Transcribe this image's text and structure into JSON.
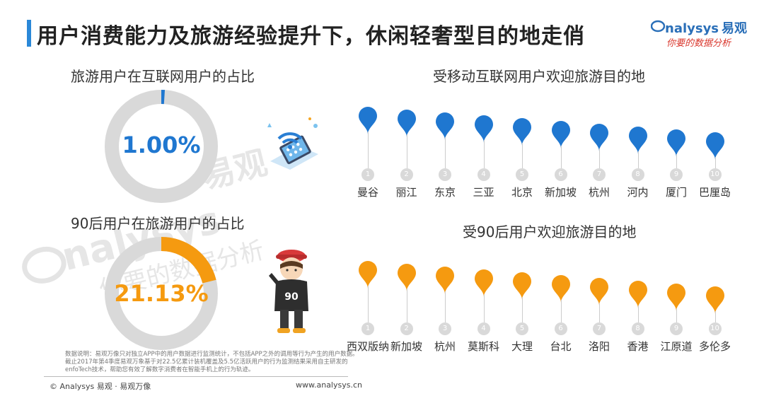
{
  "header": {
    "title": "用户消费能力及旅游经验提升下，休闲轻奢型目的地走俏",
    "logo_main": "nalysys",
    "logo_cn": "易观",
    "logo_slogan": "你要的数据分析",
    "accent_color": "#2a88d8"
  },
  "watermark": {
    "text_en": "nalysys",
    "text_cn": "易观",
    "text_slogan": "你要的数据分析"
  },
  "chart_data": [
    {
      "type": "pie",
      "title": "旅游用户在互联网用户的占比",
      "value_label": "1.00%",
      "values": [
        1.0,
        99.0
      ],
      "colors": [
        "#1f77d0",
        "#d9d9d9"
      ]
    },
    {
      "type": "pie",
      "title": "90后用户在旅游用户的占比",
      "value_label": "21.13%",
      "values": [
        21.13,
        78.87
      ],
      "colors": [
        "#f59a10",
        "#d9d9d9"
      ]
    },
    {
      "type": "table",
      "title": "受移动互联网用户欢迎旅游目的地",
      "color": "#1f77d0",
      "ranks": [
        "1",
        "2",
        "3",
        "4",
        "5",
        "6",
        "7",
        "8",
        "9",
        "10"
      ],
      "categories": [
        "曼谷",
        "丽江",
        "东京",
        "三亚",
        "北京",
        "新加坡",
        "杭州",
        "河内",
        "厦门",
        "巴厘岛"
      ]
    },
    {
      "type": "table",
      "title": "受90后用户欢迎旅游目的地",
      "color": "#f59a10",
      "ranks": [
        "1",
        "2",
        "3",
        "4",
        "5",
        "6",
        "7",
        "8",
        "9",
        "10"
      ],
      "categories": [
        "西双版纳",
        "新加坡",
        "杭州",
        "莫斯科",
        "大理",
        "台北",
        "洛阳",
        "香港",
        "江原道",
        "多伦多"
      ]
    }
  ],
  "footnote": "数据说明：易观万像只对独立APP中的用户数据进行监测统计，不包括APP之外的调用等行为产生的用户数据。截止2017年第4季度易观万象基于对22.5亿累计装机覆盖及5.5亿活跃用户的行为监测结果采用自主研发的enfoTech技术，帮助您有效了解数字消费者在智能手机上的行为轨迹。",
  "footer": {
    "left": "© Analysys 易观 · 易观万像",
    "right": "www.analysys.cn"
  },
  "icons": {
    "wifi_phone": "wifi-phone-icon",
    "person_90": "person-90-icon"
  },
  "person_shirt_text": "90"
}
